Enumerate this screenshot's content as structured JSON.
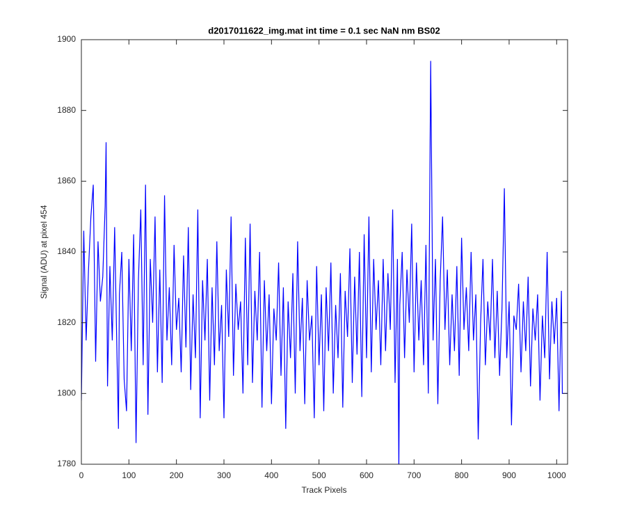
{
  "chart_data": {
    "type": "line",
    "title": "d2017011622_img.mat int time = 0.1 sec  NaN nm BS02",
    "x_label": "Track Pixels",
    "y_label": "Signal (ADU) at pixel 454",
    "color": "#0000ff",
    "xlim": [
      0,
      1023
    ],
    "ylim": [
      1780,
      1900
    ],
    "xticks": [
      0,
      100,
      200,
      300,
      400,
      500,
      600,
      700,
      800,
      900,
      1000
    ],
    "yticks": [
      1780,
      1800,
      1820,
      1840,
      1860,
      1880,
      1900
    ],
    "x": [
      0,
      5,
      10,
      15,
      20,
      25,
      30,
      35,
      40,
      45,
      50,
      52,
      55,
      60,
      65,
      70,
      75,
      78,
      80,
      85,
      90,
      95,
      100,
      105,
      110,
      115,
      120,
      125,
      130,
      135,
      140,
      145,
      150,
      155,
      160,
      165,
      170,
      175,
      180,
      185,
      190,
      195,
      200,
      205,
      210,
      215,
      220,
      225,
      230,
      235,
      240,
      245,
      250,
      255,
      260,
      265,
      270,
      275,
      280,
      285,
      290,
      295,
      300,
      305,
      310,
      315,
      320,
      325,
      330,
      335,
      340,
      345,
      350,
      355,
      360,
      365,
      370,
      375,
      380,
      385,
      390,
      395,
      400,
      405,
      410,
      415,
      420,
      425,
      430,
      435,
      440,
      445,
      450,
      455,
      460,
      465,
      470,
      475,
      480,
      485,
      490,
      495,
      500,
      505,
      510,
      515,
      520,
      525,
      530,
      535,
      540,
      545,
      550,
      555,
      560,
      565,
      570,
      575,
      580,
      585,
      590,
      595,
      600,
      605,
      610,
      615,
      620,
      625,
      630,
      635,
      640,
      645,
      650,
      655,
      660,
      665,
      668,
      670,
      675,
      680,
      685,
      690,
      695,
      700,
      705,
      710,
      715,
      720,
      725,
      730,
      735,
      740,
      745,
      750,
      755,
      760,
      765,
      770,
      775,
      780,
      785,
      790,
      795,
      800,
      805,
      810,
      815,
      820,
      825,
      830,
      835,
      840,
      845,
      850,
      855,
      860,
      865,
      870,
      875,
      880,
      885,
      890,
      895,
      900,
      905,
      910,
      915,
      920,
      925,
      930,
      935,
      940,
      945,
      950,
      955,
      960,
      965,
      970,
      975,
      980,
      985,
      990,
      995,
      1000,
      1005,
      1010,
      1012,
      1023
    ],
    "values": [
      1798,
      1846,
      1815,
      1835,
      1850,
      1859,
      1809,
      1843,
      1826,
      1833,
      1853,
      1871,
      1802,
      1836,
      1815,
      1847,
      1810,
      1790,
      1828,
      1840,
      1804,
      1795,
      1838,
      1812,
      1845,
      1786,
      1832,
      1852,
      1808,
      1859,
      1794,
      1838,
      1820,
      1850,
      1806,
      1835,
      1803,
      1856,
      1815,
      1830,
      1808,
      1842,
      1818,
      1827,
      1806,
      1839,
      1813,
      1847,
      1801,
      1828,
      1810,
      1852,
      1793,
      1832,
      1815,
      1838,
      1798,
      1830,
      1808,
      1843,
      1812,
      1825,
      1793,
      1835,
      1816,
      1850,
      1805,
      1831,
      1818,
      1826,
      1800,
      1844,
      1808,
      1848,
      1803,
      1829,
      1815,
      1840,
      1796,
      1832,
      1812,
      1828,
      1797,
      1824,
      1815,
      1837,
      1805,
      1830,
      1790,
      1826,
      1810,
      1834,
      1800,
      1843,
      1812,
      1827,
      1797,
      1832,
      1815,
      1822,
      1793,
      1836,
      1808,
      1828,
      1795,
      1830,
      1812,
      1837,
      1800,
      1825,
      1810,
      1834,
      1796,
      1829,
      1816,
      1841,
      1803,
      1833,
      1811,
      1840,
      1799,
      1845,
      1810,
      1850,
      1806,
      1838,
      1818,
      1832,
      1808,
      1838,
      1812,
      1834,
      1818,
      1852,
      1803,
      1838,
      1778,
      1825,
      1840,
      1810,
      1835,
      1820,
      1848,
      1806,
      1837,
      1815,
      1832,
      1808,
      1842,
      1800,
      1894,
      1815,
      1838,
      1797,
      1832,
      1850,
      1818,
      1835,
      1808,
      1828,
      1812,
      1836,
      1805,
      1844,
      1818,
      1830,
      1812,
      1840,
      1815,
      1828,
      1787,
      1820,
      1838,
      1808,
      1826,
      1815,
      1838,
      1810,
      1829,
      1805,
      1824,
      1858,
      1810,
      1826,
      1791,
      1822,
      1818,
      1831,
      1806,
      1826,
      1812,
      1833,
      1802,
      1824,
      1815,
      1828,
      1798,
      1822,
      1810,
      1840,
      1804,
      1826,
      1814,
      1827,
      1795,
      1829,
      1800,
      1800
    ]
  }
}
